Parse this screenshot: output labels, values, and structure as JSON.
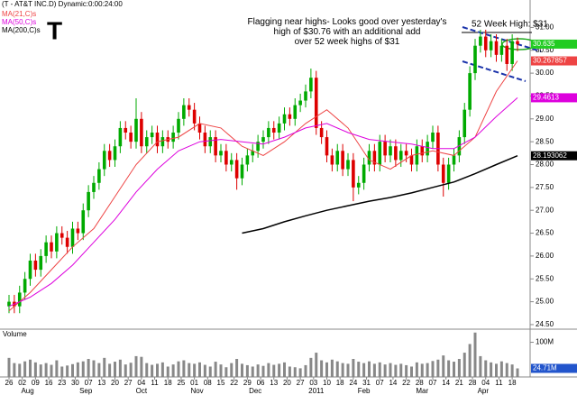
{
  "symbol": "T",
  "chart_data": {
    "type": "candlestick",
    "title": "(T - AT&T INC.D) Dynamic:0:00:24:00",
    "annotation": "Flagging near highs- Looks good over yesterday's high of $30.76 with an additional add over 52 week highs of $31",
    "high_note": "52 Week High: $31",
    "ylim": [
      24.4,
      31.6
    ],
    "yticks": [
      {
        "value": 24.5,
        "label": "24.50"
      },
      {
        "value": 25,
        "label": "25.00"
      },
      {
        "value": 25.5,
        "label": "25.50"
      },
      {
        "value": 26,
        "label": "26.00"
      },
      {
        "value": 26.5,
        "label": "26.50"
      },
      {
        "value": 27,
        "label": "27.00"
      },
      {
        "value": 27.5,
        "label": "27.50"
      },
      {
        "value": 28,
        "label": "28.00"
      },
      {
        "value": 28.5,
        "label": "28.50"
      },
      {
        "value": 29,
        "label": "29.00"
      },
      {
        "value": 29.5,
        "label": "29.50"
      },
      {
        "value": 30,
        "label": "30.00"
      },
      {
        "value": 30.5,
        "label": "30.50"
      },
      {
        "value": 31,
        "label": "31.00"
      }
    ],
    "xlim": [
      -3,
      197
    ],
    "xticks": [
      {
        "value": 0,
        "label": "26"
      },
      {
        "value": 5,
        "label": "02"
      },
      {
        "value": 10,
        "label": "09"
      },
      {
        "value": 15,
        "label": "16"
      },
      {
        "value": 20,
        "label": "23"
      },
      {
        "value": 25,
        "label": "30"
      },
      {
        "value": 30,
        "label": "07"
      },
      {
        "value": 35,
        "label": "13"
      },
      {
        "value": 40,
        "label": "20"
      },
      {
        "value": 45,
        "label": "27"
      },
      {
        "value": 50,
        "label": "04"
      },
      {
        "value": 55,
        "label": "11"
      },
      {
        "value": 60,
        "label": "18"
      },
      {
        "value": 65,
        "label": "25"
      },
      {
        "value": 70,
        "label": "01"
      },
      {
        "value": 75,
        "label": "08"
      },
      {
        "value": 80,
        "label": "15"
      },
      {
        "value": 85,
        "label": "22"
      },
      {
        "value": 90,
        "label": "29"
      },
      {
        "value": 95,
        "label": "06"
      },
      {
        "value": 100,
        "label": "13"
      },
      {
        "value": 105,
        "label": "20"
      },
      {
        "value": 110,
        "label": "27"
      },
      {
        "value": 115,
        "label": "03"
      },
      {
        "value": 120,
        "label": "10"
      },
      {
        "value": 125,
        "label": "18"
      },
      {
        "value": 130,
        "label": "24"
      },
      {
        "value": 135,
        "label": "31"
      },
      {
        "value": 140,
        "label": "07"
      },
      {
        "value": 145,
        "label": "14"
      },
      {
        "value": 150,
        "label": "22"
      },
      {
        "value": 155,
        "label": "28"
      },
      {
        "value": 160,
        "label": "07"
      },
      {
        "value": 165,
        "label": "14"
      },
      {
        "value": 170,
        "label": "21"
      },
      {
        "value": 175,
        "label": "28"
      },
      {
        "value": 180,
        "label": "04"
      },
      {
        "value": 185,
        "label": "11"
      },
      {
        "value": 190,
        "label": "18"
      }
    ],
    "month_ticks": [
      {
        "value": 7,
        "label": "Aug"
      },
      {
        "value": 29,
        "label": "Sep"
      },
      {
        "value": 50,
        "label": "Oct"
      },
      {
        "value": 71,
        "label": "Nov"
      },
      {
        "value": 93,
        "label": "Dec"
      },
      {
        "value": 116,
        "label": "2011"
      },
      {
        "value": 134,
        "label": "Feb"
      },
      {
        "value": 156,
        "label": "Mar"
      },
      {
        "value": 179,
        "label": "Apr"
      }
    ],
    "up_color": "#00aa00",
    "down_color": "#dd0000",
    "ohlc": {
      "x": [
        0,
        2,
        4,
        6,
        8,
        10,
        12,
        14,
        16,
        18,
        20,
        22,
        24,
        26,
        28,
        30,
        32,
        34,
        36,
        38,
        40,
        42,
        44,
        46,
        48,
        50,
        52,
        54,
        56,
        58,
        60,
        62,
        64,
        66,
        68,
        70,
        72,
        74,
        76,
        78,
        80,
        82,
        84,
        86,
        88,
        90,
        92,
        94,
        96,
        98,
        100,
        102,
        104,
        106,
        108,
        110,
        112,
        114,
        116,
        118,
        120,
        122,
        124,
        126,
        128,
        130,
        132,
        134,
        136,
        138,
        140,
        142,
        144,
        146,
        148,
        150,
        152,
        154,
        156,
        158,
        160,
        162,
        164,
        166,
        168,
        170,
        172,
        174,
        176,
        178,
        180,
        182,
        184,
        186,
        188,
        190,
        192
      ],
      "open": [
        24.9,
        25.0,
        24.9,
        25.2,
        25.5,
        25.9,
        25.7,
        26.0,
        26.3,
        26.1,
        26.5,
        26.4,
        26.2,
        26.6,
        26.5,
        27.0,
        27.4,
        27.6,
        27.9,
        28.3,
        28.1,
        28.4,
        28.8,
        28.7,
        28.5,
        29.0,
        28.4,
        28.6,
        28.7,
        28.4,
        28.6,
        28.5,
        28.7,
        29.0,
        29.3,
        29.2,
        28.9,
        28.7,
        28.4,
        28.6,
        28.2,
        28.3,
        28.0,
        28.1,
        27.7,
        28.0,
        28.2,
        28.3,
        28.5,
        28.6,
        28.8,
        28.7,
        28.9,
        29.1,
        29.0,
        29.3,
        29.4,
        29.6,
        29.9,
        28.8,
        28.6,
        28.2,
        28.0,
        28.3,
        27.9,
        28.1,
        27.5,
        27.6,
        28.0,
        28.3,
        28.0,
        28.5,
        28.2,
        28.4,
        28.1,
        28.3,
        28.2,
        28.0,
        28.4,
        28.2,
        28.5,
        28.7,
        28.0,
        27.6,
        28.0,
        28.2,
        28.6,
        29.2,
        30.0,
        30.6,
        30.8,
        30.5,
        30.7,
        30.4,
        30.6,
        30.2,
        30.7
      ],
      "high": [
        25.15,
        25.15,
        25.35,
        25.65,
        26.05,
        26.05,
        26.15,
        26.45,
        26.45,
        26.65,
        26.65,
        26.55,
        26.75,
        26.75,
        27.15,
        27.55,
        27.75,
        28.05,
        28.45,
        28.45,
        28.55,
        28.95,
        28.95,
        28.85,
        29.45,
        29.15,
        28.75,
        28.85,
        28.85,
        28.75,
        28.75,
        28.85,
        29.15,
        29.45,
        29.45,
        29.35,
        29.05,
        28.85,
        28.75,
        28.75,
        28.45,
        28.45,
        28.25,
        28.25,
        28.15,
        28.35,
        28.45,
        28.65,
        28.75,
        28.95,
        28.95,
        29.05,
        29.25,
        29.25,
        29.45,
        29.55,
        29.75,
        30.1,
        30.05,
        28.95,
        28.75,
        28.35,
        28.45,
        28.45,
        28.25,
        28.25,
        27.75,
        28.15,
        28.45,
        28.45,
        28.65,
        28.65,
        28.55,
        28.55,
        28.45,
        28.45,
        28.35,
        28.55,
        28.55,
        28.65,
        28.85,
        28.85,
        28.15,
        28.15,
        28.35,
        28.75,
        29.35,
        30.15,
        30.75,
        30.95,
        30.95,
        30.85,
        30.85,
        30.75,
        30.75,
        30.85,
        30.78
      ],
      "low": [
        24.75,
        24.75,
        24.75,
        25.05,
        25.35,
        25.55,
        25.55,
        25.85,
        25.95,
        25.95,
        26.25,
        26.05,
        26.05,
        26.35,
        26.35,
        26.85,
        27.25,
        27.45,
        27.75,
        27.95,
        27.95,
        28.25,
        28.55,
        28.35,
        28.35,
        28.25,
        28.25,
        28.45,
        28.25,
        28.25,
        28.35,
        28.35,
        28.55,
        28.85,
        29.05,
        28.75,
        28.55,
        28.25,
        28.25,
        28.05,
        28.05,
        27.85,
        27.85,
        27.45,
        27.55,
        27.85,
        28.05,
        28.15,
        28.35,
        28.45,
        28.55,
        28.55,
        28.75,
        28.85,
        28.85,
        29.15,
        29.25,
        29.45,
        28.65,
        28.45,
        28.05,
        27.85,
        27.85,
        27.75,
        27.75,
        27.2,
        27.35,
        27.45,
        27.85,
        27.85,
        27.85,
        28.05,
        28.05,
        27.95,
        27.95,
        28.05,
        27.85,
        27.85,
        28.05,
        28.05,
        28.35,
        27.85,
        27.3,
        27.45,
        27.85,
        28.05,
        28.45,
        29.05,
        29.85,
        30.45,
        30.35,
        30.35,
        30.25,
        30.25,
        30.05,
        30.05,
        30.48
      ],
      "close": [
        25.0,
        24.9,
        25.2,
        25.5,
        25.9,
        25.7,
        26.0,
        26.3,
        26.1,
        26.5,
        26.4,
        26.2,
        26.6,
        26.5,
        27.0,
        27.4,
        27.6,
        27.9,
        28.3,
        28.1,
        28.4,
        28.8,
        28.7,
        28.5,
        29.0,
        28.4,
        28.6,
        28.7,
        28.4,
        28.6,
        28.5,
        28.7,
        29.0,
        29.3,
        29.2,
        28.9,
        28.7,
        28.4,
        28.6,
        28.2,
        28.3,
        28.0,
        28.1,
        27.7,
        28.0,
        28.2,
        28.3,
        28.5,
        28.6,
        28.8,
        28.7,
        28.9,
        29.1,
        29.0,
        29.3,
        29.4,
        29.6,
        29.9,
        28.8,
        28.6,
        28.2,
        28.0,
        28.3,
        27.9,
        28.1,
        27.5,
        27.6,
        28.0,
        28.3,
        28.0,
        28.5,
        28.2,
        28.4,
        28.1,
        28.3,
        28.2,
        28.0,
        28.4,
        28.2,
        28.5,
        28.7,
        28.0,
        27.6,
        28.0,
        28.2,
        28.6,
        29.2,
        30.0,
        30.6,
        30.8,
        30.5,
        30.7,
        30.4,
        30.6,
        30.2,
        30.7,
        30.635
      ],
      "box_color": "#22cc22"
    },
    "series": [
      {
        "name": "MA(21,C)s",
        "color": "#ee4444",
        "x": [
          0,
          8,
          16,
          24,
          32,
          40,
          48,
          56,
          64,
          72,
          80,
          88,
          96,
          104,
          112,
          120,
          128,
          136,
          144,
          152,
          160,
          168,
          176,
          184,
          192
        ],
        "values": [
          24.8,
          25.2,
          25.7,
          26.2,
          26.6,
          27.3,
          28.0,
          28.5,
          28.6,
          28.9,
          28.8,
          28.4,
          28.2,
          28.5,
          28.9,
          29.2,
          28.8,
          28.1,
          27.9,
          28.2,
          28.3,
          28.2,
          28.6,
          29.6,
          30.267857
        ]
      },
      {
        "name": "MA(50,C)s",
        "color": "#dd00dd",
        "x": [
          0,
          8,
          16,
          24,
          32,
          40,
          48,
          56,
          64,
          72,
          80,
          88,
          96,
          104,
          112,
          120,
          128,
          136,
          144,
          152,
          160,
          168,
          176,
          184,
          192
        ],
        "values": [
          24.9,
          25.1,
          25.4,
          25.8,
          26.3,
          26.8,
          27.4,
          27.9,
          28.3,
          28.5,
          28.55,
          28.5,
          28.45,
          28.6,
          28.8,
          28.9,
          28.7,
          28.55,
          28.5,
          28.45,
          28.35,
          28.35,
          28.6,
          29.05,
          29.4613
        ]
      },
      {
        "name": "MA(200,C)s",
        "color": "#000000",
        "x": [
          88,
          96,
          104,
          112,
          120,
          128,
          136,
          144,
          152,
          160,
          168,
          176,
          184,
          192
        ],
        "values": [
          26.5,
          26.6,
          26.75,
          26.88,
          27.0,
          27.1,
          27.2,
          27.28,
          27.38,
          27.5,
          27.62,
          27.8,
          28.0,
          28.193062
        ]
      }
    ],
    "volume": {
      "title": "Volume",
      "color": "#888888",
      "ylim": [
        0,
        130
      ],
      "yticks": [
        {
          "value": 100,
          "label": "100M"
        }
      ],
      "last": {
        "value": 24.71,
        "label": "24.71M"
      },
      "values": [
        55,
        40,
        38,
        45,
        50,
        42,
        36,
        40,
        35,
        48,
        30,
        33,
        37,
        42,
        45,
        52,
        48,
        40,
        55,
        38,
        44,
        50,
        36,
        41,
        60,
        58,
        40,
        35,
        38,
        42,
        30,
        36,
        45,
        48,
        40,
        38,
        42,
        35,
        30,
        44,
        36,
        28,
        40,
        52,
        38,
        34,
        30,
        36,
        32,
        40,
        35,
        38,
        42,
        30,
        28,
        25,
        34,
        55,
        70,
        48,
        42,
        50,
        45,
        40,
        38,
        52,
        44,
        40,
        45,
        38,
        42,
        36,
        40,
        35,
        38,
        34,
        30,
        42,
        38,
        40,
        46,
        50,
        62,
        48,
        44,
        52,
        70,
        95,
        128,
        60,
        48,
        42,
        38,
        45,
        40,
        36,
        24.71
      ]
    }
  }
}
